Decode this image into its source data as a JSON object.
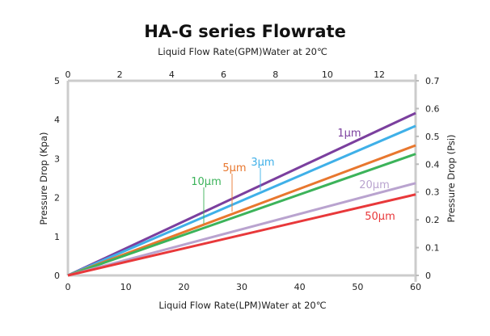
{
  "chart_data": {
    "type": "line",
    "title": "HA-G series  Flowrate",
    "xlabel": "Liquid  Flow Rate(LPM)Water  at  20℃",
    "x2label": "Liquid  Flow Rate(GPM)Water  at  20℃",
    "ylabel": "Pressure  Drop  (Kpa)",
    "y2label": "Pressure  Drop  (Psi)",
    "xlim": [
      0,
      60
    ],
    "x2lim": [
      0,
      13.4
    ],
    "ylim": [
      0,
      5
    ],
    "y2lim": [
      0,
      0.7
    ],
    "xticks": [
      "0",
      "10",
      "20",
      "30",
      "40",
      "50",
      "60"
    ],
    "x2ticks": [
      "0",
      "2",
      "4",
      "6",
      "8",
      "10",
      "12"
    ],
    "yticks": [
      "0",
      "1",
      "2",
      "3",
      "4",
      "5"
    ],
    "y2ticks": [
      "0",
      "0.1",
      "0.2",
      "0.3",
      "0.4",
      "0.5",
      "0.6",
      "0.7"
    ],
    "grid": false,
    "series": [
      {
        "name": "1µm",
        "color": "#7b3f9e",
        "x": [
          0,
          60
        ],
        "y": [
          0,
          4.17
        ]
      },
      {
        "name": "3µm",
        "color": "#3fb0e8",
        "x": [
          0,
          60
        ],
        "y": [
          0,
          3.84
        ]
      },
      {
        "name": "5µm",
        "color": "#e8772e",
        "x": [
          0,
          60
        ],
        "y": [
          0,
          3.34
        ]
      },
      {
        "name": "10µm",
        "color": "#3cb35a",
        "x": [
          0,
          60
        ],
        "y": [
          0,
          3.12
        ]
      },
      {
        "name": "20µm",
        "color": "#b9a3cf",
        "x": [
          0,
          60
        ],
        "y": [
          0,
          2.37
        ]
      },
      {
        "name": "50µm",
        "color": "#e8383a",
        "x": [
          0,
          60
        ],
        "y": [
          0,
          2.08
        ]
      }
    ]
  }
}
